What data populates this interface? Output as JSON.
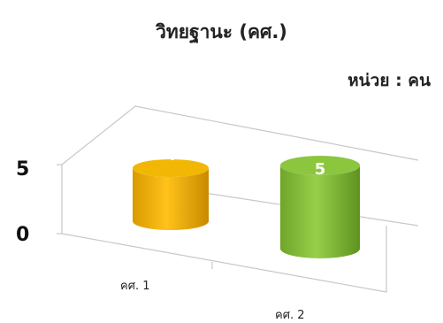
{
  "chart_data": {
    "type": "bar",
    "title": "วิทยฐานะ (คศ.)",
    "unit_label": "หน่วย : คน",
    "categories": [
      "คศ. 1",
      "คศ. 2"
    ],
    "values": [
      4,
      5
    ],
    "data_labels": [
      "4",
      "5"
    ],
    "y_ticks": [
      "0",
      "5"
    ],
    "ylim": [
      0,
      5
    ],
    "style": "3d-cylinder",
    "colors": [
      "#F2B705",
      "#8CC63F"
    ],
    "grid": false
  }
}
